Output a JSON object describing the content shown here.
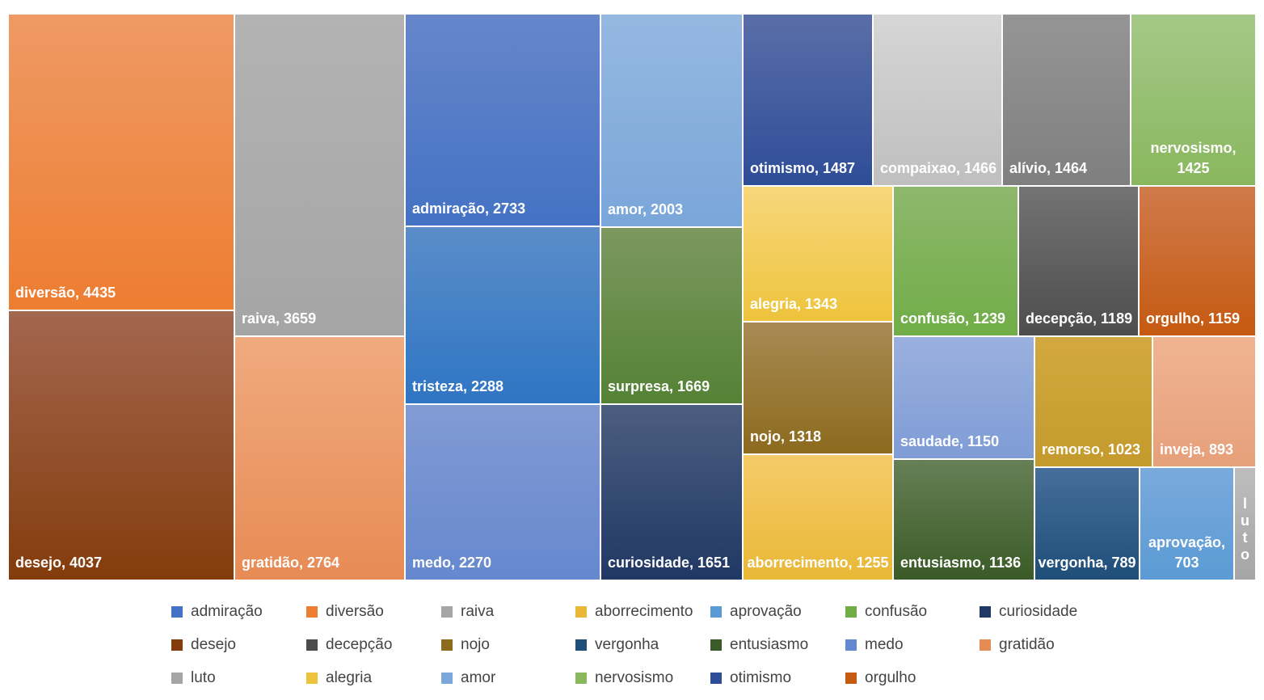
{
  "chart_data": {
    "type": "treemap",
    "title": "",
    "series": [
      {
        "name": "diversão",
        "value": 4435,
        "label": "diversão, 4435",
        "color": "#ED7D31",
        "light": "#EF9A64"
      },
      {
        "name": "desejo",
        "value": 4037,
        "label": "desejo, 4037",
        "color": "#843C0C",
        "light": "#A3664F"
      },
      {
        "name": "raiva",
        "value": 3659,
        "label": "raiva, 3659",
        "color": "#A5A5A5",
        "light": "#B3B3B3"
      },
      {
        "name": "gratidão",
        "value": 2764,
        "label": "gratidão, 2764",
        "color": "#E78B55",
        "light": "#F0AA7E"
      },
      {
        "name": "admiração",
        "value": 2733,
        "label": "admiração, 2733",
        "color": "#4472C4",
        "light": "#6686CA"
      },
      {
        "name": "tristeza",
        "value": 2288,
        "label": "tristeza, 2288",
        "color": "#2F75C4",
        "light": "#5A8DC9"
      },
      {
        "name": "medo",
        "value": 2270,
        "label": "medo, 2270",
        "color": "#6688CE",
        "light": "#819BD4"
      },
      {
        "name": "amor",
        "value": 2003,
        "label": "amor, 2003",
        "color": "#7AA6D9",
        "light": "#95B8E0"
      },
      {
        "name": "surpresa",
        "value": 1669,
        "label": "surpresa, 1669",
        "color": "#548235",
        "light": "#7C9860"
      },
      {
        "name": "curiosidade",
        "value": 1651,
        "label": "curiosidade, 1651",
        "color": "#203864",
        "light": "#4C5E80"
      },
      {
        "name": "otimismo",
        "value": 1487,
        "label": "otimismo, 1487",
        "color": "#2E4D98",
        "light": "#5A6EA8"
      },
      {
        "name": "compaixao",
        "value": 1466,
        "label": "compaixao, 1466",
        "color": "#BFBFBF",
        "light": "#D6D6D6"
      },
      {
        "name": "alívio",
        "value": 1464,
        "label": "alívio, 1464",
        "color": "#7F7F7F",
        "light": "#959595"
      },
      {
        "name": "nervosismo",
        "value": 1425,
        "label": "nervosismo, 1425",
        "color": "#89B75E",
        "light": "#A5C888"
      },
      {
        "name": "alegria",
        "value": 1343,
        "label": "alegria, 1343",
        "color": "#EEC33C",
        "light": "#F7D77C"
      },
      {
        "name": "nojo",
        "value": 1318,
        "label": "nojo, 1318",
        "color": "#8C6A1E",
        "light": "#A78B54"
      },
      {
        "name": "aborrecimento",
        "value": 1255,
        "label": "aborrecimento, 1255",
        "color": "#E9B837",
        "light": "#F5CB68"
      },
      {
        "name": "confusão",
        "value": 1239,
        "label": "confusão, 1239",
        "color": "#70AD47",
        "light": "#8EB86D"
      },
      {
        "name": "decepção",
        "value": 1189,
        "label": "decepção, 1189",
        "color": "#4D4D4D",
        "light": "#737373"
      },
      {
        "name": "orgulho",
        "value": 1159,
        "label": "orgulho, 1159",
        "color": "#C55A11",
        "light": "#D07A4B"
      },
      {
        "name": "saudade",
        "value": 1150,
        "label": "saudade, 1150",
        "color": "#7F9CD6",
        "light": "#9AB0DE"
      },
      {
        "name": "entusiasmo",
        "value": 1136,
        "label": "entusiasmo, 1136",
        "color": "#3A5B27",
        "light": "#677F56"
      },
      {
        "name": "remorso",
        "value": 1023,
        "label": "remorso, 1023",
        "color": "#C49A2D",
        "light": "#D3A83E"
      },
      {
        "name": "inveja",
        "value": 893,
        "label": "inveja, 893",
        "color": "#E6A07A",
        "light": "#F0B493"
      },
      {
        "name": "vergonha",
        "value": 789,
        "label": "vergonha, 789",
        "color": "#1F4E79",
        "light": "#456E9C"
      },
      {
        "name": "aprovação",
        "value": 703,
        "label": "aprovação, 703",
        "color": "#5B9BD5",
        "light": "#7AAADC"
      },
      {
        "name": "luto",
        "value": null,
        "label": "luto",
        "color": "#A5A5A5",
        "light": "#BDBDBD"
      }
    ],
    "legend": [
      "admiração",
      "diversão",
      "raiva",
      "aborrecimento",
      "aprovação",
      "confusão",
      "curiosidade",
      "desejo",
      "decepção",
      "nojo",
      "vergonha",
      "entusiasmo",
      "medo",
      "gratidão",
      "luto",
      "alegria",
      "amor",
      "nervosismo",
      "otimismo",
      "orgulho"
    ],
    "legend_placement": "bottom"
  }
}
